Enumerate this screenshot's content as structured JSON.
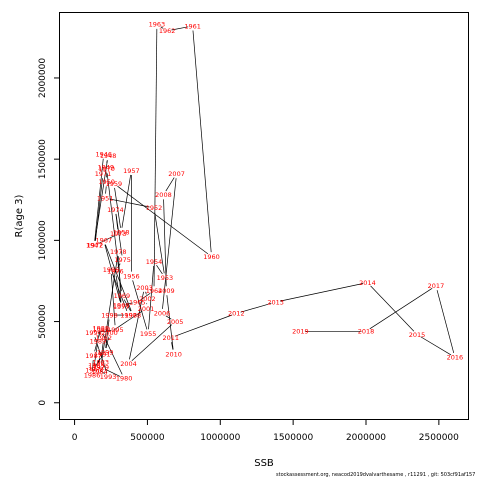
{
  "chart_data": {
    "type": "scatter",
    "xlabel": "SSB",
    "ylabel": "R(age 3)",
    "xlim": [
      -100000,
      2700000
    ],
    "ylim": [
      -100000,
      2400000
    ],
    "x_ticks": [
      0,
      500000,
      1000000,
      1500000,
      2000000,
      2500000
    ],
    "x_tick_labels": [
      "0",
      "500000",
      "1000000",
      "1500000",
      "2000000",
      "2500000"
    ],
    "y_ticks": [
      0,
      500000,
      1000000,
      1500000,
      2000000
    ],
    "y_tick_labels": [
      "0",
      "500000",
      "1000000",
      "1500000",
      "2000000"
    ],
    "series": [
      {
        "line_color": "#000000",
        "label_color": "#ff0000",
        "points": [
          {
            "year": "1946",
            "ssb": 200000,
            "r": 1530000
          },
          {
            "year": "1947",
            "ssb": 135000,
            "r": 970000
          },
          {
            "year": "1948",
            "ssb": 230000,
            "r": 1520000
          },
          {
            "year": "1949",
            "ssb": 215000,
            "r": 1450000
          },
          {
            "year": "1950",
            "ssb": 220000,
            "r": 1360000
          },
          {
            "year": "1951",
            "ssb": 210000,
            "r": 1260000
          },
          {
            "year": "1952",
            "ssb": 545000,
            "r": 1200000
          },
          {
            "year": "1953",
            "ssb": 620000,
            "r": 770000
          },
          {
            "year": "1954",
            "ssb": 545000,
            "r": 870000
          },
          {
            "year": "1955",
            "ssb": 505000,
            "r": 425000
          },
          {
            "year": "1956",
            "ssb": 390000,
            "r": 780000
          },
          {
            "year": "1957",
            "ssb": 390000,
            "r": 1430000
          },
          {
            "year": "1958",
            "ssb": 320000,
            "r": 1050000
          },
          {
            "year": "1959",
            "ssb": 270000,
            "r": 1350000
          },
          {
            "year": "1960",
            "ssb": 940000,
            "r": 900000
          },
          {
            "year": "1961",
            "ssb": 810000,
            "r": 2320000
          },
          {
            "year": "1962",
            "ssb": 635000,
            "r": 2290000
          },
          {
            "year": "1963",
            "ssb": 565000,
            "r": 2330000
          },
          {
            "year": "1964",
            "ssb": 545000,
            "r": 690000
          },
          {
            "year": "1965",
            "ssb": 430000,
            "r": 620000
          },
          {
            "year": "1966",
            "ssb": 320000,
            "r": 600000
          },
          {
            "year": "1967",
            "ssb": 200000,
            "r": 1000000
          },
          {
            "year": "1968",
            "ssb": 400000,
            "r": 540000
          },
          {
            "year": "1969",
            "ssb": 325000,
            "r": 660000
          },
          {
            "year": "1970",
            "ssb": 220000,
            "r": 1440000
          },
          {
            "year": "1971",
            "ssb": 195000,
            "r": 1410000
          },
          {
            "year": "1972",
            "ssb": 140000,
            "r": 970000
          },
          {
            "year": "1973",
            "ssb": 300000,
            "r": 1040000
          },
          {
            "year": "1974",
            "ssb": 280000,
            "r": 1190000
          },
          {
            "year": "1975",
            "ssb": 330000,
            "r": 880000
          },
          {
            "year": "1976",
            "ssb": 280000,
            "r": 810000
          },
          {
            "year": "1977",
            "ssb": 320000,
            "r": 590000
          },
          {
            "year": "1978",
            "ssb": 300000,
            "r": 930000
          },
          {
            "year": "1979",
            "ssb": 180000,
            "r": 220000
          },
          {
            "year": "1980",
            "ssb": 340000,
            "r": 150000
          },
          {
            "year": "1981",
            "ssb": 180000,
            "r": 450000
          },
          {
            "year": "1982",
            "ssb": 200000,
            "r": 400000
          },
          {
            "year": "1983",
            "ssb": 180000,
            "r": 250000
          },
          {
            "year": "1984",
            "ssb": 170000,
            "r": 190000
          },
          {
            "year": "1985",
            "ssb": 150000,
            "r": 230000
          },
          {
            "year": "1986",
            "ssb": 120000,
            "r": 170000
          },
          {
            "year": "1987",
            "ssb": 130000,
            "r": 290000
          },
          {
            "year": "1988",
            "ssb": 180000,
            "r": 460000
          },
          {
            "year": "1989",
            "ssb": 160000,
            "r": 380000
          },
          {
            "year": "1990",
            "ssb": 130000,
            "r": 200000
          },
          {
            "year": "1991",
            "ssb": 190000,
            "r": 300000
          },
          {
            "year": "1992",
            "ssb": 150000,
            "r": 220000
          },
          {
            "year": "1993",
            "ssb": 230000,
            "r": 160000
          },
          {
            "year": "1994",
            "ssb": 130000,
            "r": 430000
          },
          {
            "year": "1995",
            "ssb": 280000,
            "r": 450000
          },
          {
            "year": "1996",
            "ssb": 250000,
            "r": 820000
          },
          {
            "year": "1997",
            "ssb": 370000,
            "r": 540000
          },
          {
            "year": "1998",
            "ssb": 240000,
            "r": 540000
          },
          {
            "year": "1999",
            "ssb": 210000,
            "r": 310000
          },
          {
            "year": "2000",
            "ssb": 240000,
            "r": 430000
          },
          {
            "year": "2001",
            "ssb": 490000,
            "r": 580000
          },
          {
            "year": "2002",
            "ssb": 500000,
            "r": 640000
          },
          {
            "year": "2003",
            "ssb": 480000,
            "r": 710000
          },
          {
            "year": "2004",
            "ssb": 370000,
            "r": 240000
          },
          {
            "year": "2005",
            "ssb": 690000,
            "r": 500000
          },
          {
            "year": "2006",
            "ssb": 600000,
            "r": 550000
          },
          {
            "year": "2007",
            "ssb": 700000,
            "r": 1410000
          },
          {
            "year": "2008",
            "ssb": 610000,
            "r": 1280000
          },
          {
            "year": "2009",
            "ssb": 630000,
            "r": 690000
          },
          {
            "year": "2010",
            "ssb": 680000,
            "r": 300000
          },
          {
            "year": "2011",
            "ssb": 660000,
            "r": 400000
          },
          {
            "year": "2012",
            "ssb": 1110000,
            "r": 550000
          },
          {
            "year": "2013",
            "ssb": 1380000,
            "r": 620000
          },
          {
            "year": "2014",
            "ssb": 2010000,
            "r": 740000
          },
          {
            "year": "2015",
            "ssb": 2350000,
            "r": 420000
          },
          {
            "year": "2016",
            "ssb": 2610000,
            "r": 280000
          },
          {
            "year": "2017",
            "ssb": 2480000,
            "r": 720000
          },
          {
            "year": "2018",
            "ssb": 2000000,
            "r": 440000
          },
          {
            "year": "2019",
            "ssb": 1550000,
            "r": 440000
          }
        ]
      }
    ]
  },
  "footer_text": "stockassessment.org, neacod2019dvalvarthesame , r11291 , git: 503cf91af157"
}
